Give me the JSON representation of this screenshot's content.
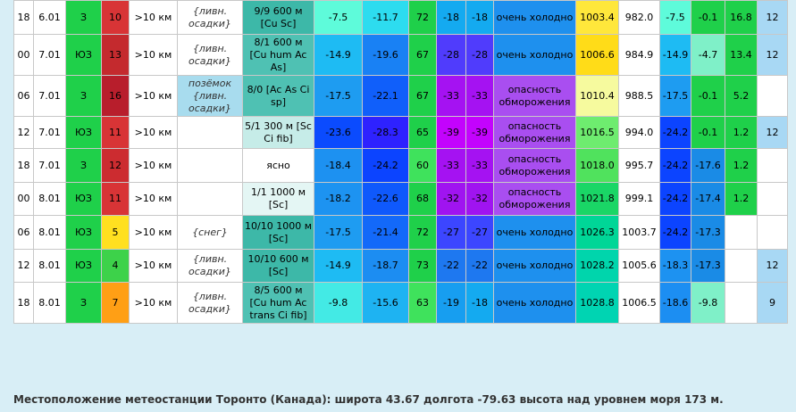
{
  "rows": [
    {
      "h": "18",
      "d": "6.01",
      "dir": "З",
      "wind": "10",
      "vis": ">10 км",
      "ph": "{ливн. осадки}",
      "cl": "9/9 600 м [Cu Sc]",
      "t": "-7.5",
      "tw": "-11.7",
      "rh": "72",
      "td": "-18",
      "tf": "-18",
      "comf": "очень холодно",
      "p": "1003.4",
      "p2": "982.0",
      "tmax": "-7.5",
      "tmin": "-0.1",
      "x1": "16.8",
      "x2": "12"
    },
    {
      "h": "00",
      "d": "7.01",
      "dir": "ЮЗ",
      "wind": "13",
      "vis": ">10 км",
      "ph": "{ливн. осадки}",
      "cl": "8/1 600 м [Cu hum Ac As]",
      "t": "-14.9",
      "tw": "-19.6",
      "rh": "67",
      "td": "-28",
      "tf": "-28",
      "comf": "очень холодно",
      "p": "1006.6",
      "p2": "984.9",
      "tmax": "-14.9",
      "tmin": "-4.7",
      "x1": "13.4",
      "x2": "12"
    },
    {
      "h": "06",
      "d": "7.01",
      "dir": "З",
      "wind": "16",
      "vis": ">10 км",
      "ph": "позёмок {ливн. осадки}",
      "cl": "8/0 [Ac As Ci sp]",
      "t": "-17.5",
      "tw": "-22.1",
      "rh": "67",
      "td": "-33",
      "tf": "-33",
      "comf": "опасность обморожения",
      "p": "1010.4",
      "p2": "988.5",
      "tmax": "-17.5",
      "tmin": "-0.1",
      "x1": "5.2",
      "x2": ""
    },
    {
      "h": "12",
      "d": "7.01",
      "dir": "ЮЗ",
      "wind": "11",
      "vis": ">10 км",
      "ph": "",
      "cl": "5/1 300 м [Sc Ci fib]",
      "t": "-23.6",
      "tw": "-28.3",
      "rh": "65",
      "td": "-39",
      "tf": "-39",
      "comf": "опасность обморожения",
      "p": "1016.5",
      "p2": "994.0",
      "tmax": "-24.2",
      "tmin": "-0.1",
      "x1": "1.2",
      "x2": "12"
    },
    {
      "h": "18",
      "d": "7.01",
      "dir": "З",
      "wind": "12",
      "vis": ">10 км",
      "ph": "",
      "cl": "ясно",
      "t": "-18.4",
      "tw": "-24.2",
      "rh": "60",
      "td": "-33",
      "tf": "-33",
      "comf": "опасность обморожения",
      "p": "1018.0",
      "p2": "995.7",
      "tmax": "-24.2",
      "tmin": "-17.6",
      "x1": "1.2",
      "x2": ""
    },
    {
      "h": "00",
      "d": "8.01",
      "dir": "ЮЗ",
      "wind": "11",
      "vis": ">10 км",
      "ph": "",
      "cl": "1/1 1000 м [Sc]",
      "t": "-18.2",
      "tw": "-22.6",
      "rh": "68",
      "td": "-32",
      "tf": "-32",
      "comf": "опасность обморожения",
      "p": "1021.8",
      "p2": "999.1",
      "tmax": "-24.2",
      "tmin": "-17.4",
      "x1": "1.2",
      "x2": ""
    },
    {
      "h": "06",
      "d": "8.01",
      "dir": "ЮЗ",
      "wind": "5",
      "vis": ">10 км",
      "ph": "{снег}",
      "cl": "10/10 1000 м [Sc]",
      "t": "-17.5",
      "tw": "-21.4",
      "rh": "72",
      "td": "-27",
      "tf": "-27",
      "comf": "очень холодно",
      "p": "1026.3",
      "p2": "1003.7",
      "tmax": "-24.2",
      "tmin": "-17.3",
      "x1": "",
      "x2": ""
    },
    {
      "h": "12",
      "d": "8.01",
      "dir": "ЮЗ",
      "wind": "4",
      "vis": ">10 км",
      "ph": "{ливн. осадки}",
      "cl": "10/10 600 м [Sc]",
      "t": "-14.9",
      "tw": "-18.7",
      "rh": "73",
      "td": "-22",
      "tf": "-22",
      "comf": "очень холодно",
      "p": "1028.2",
      "p2": "1005.6",
      "tmax": "-18.3",
      "tmin": "-17.3",
      "x1": "",
      "x2": "12"
    },
    {
      "h": "18",
      "d": "8.01",
      "dir": "З",
      "wind": "7",
      "vis": ">10 км",
      "ph": "{ливн. осадки}",
      "cl": "8/5 600 м [Cu hum Ac trans Ci fib]",
      "t": "-9.8",
      "tw": "-15.6",
      "rh": "63",
      "td": "-19",
      "tf": "-18",
      "comf": "очень холодно",
      "p": "1028.8",
      "p2": "1006.5",
      "tmax": "-18.6",
      "tmin": "-9.8",
      "x1": "",
      "x2": "9"
    }
  ],
  "footer": "Местоположение метеостанции Торонто (Канада): широта 43.67 долгота -79.63 высота над уровнем моря 173 м."
}
